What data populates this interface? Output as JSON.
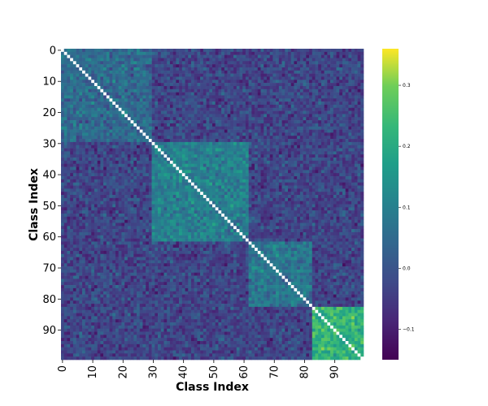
{
  "chart_data": {
    "type": "heatmap",
    "title": "",
    "xlabel": "Class Index",
    "ylabel": "Class Index",
    "n_classes": 100,
    "x_ticks": [
      "0",
      "10",
      "20",
      "30",
      "40",
      "50",
      "60",
      "70",
      "80",
      "90"
    ],
    "y_ticks": [
      "0",
      "10",
      "20",
      "30",
      "40",
      "50",
      "60",
      "70",
      "80",
      "90"
    ],
    "colorbar": {
      "colormap": "viridis",
      "range": [
        -0.15,
        0.36
      ],
      "ticks": [
        "0.3",
        "0.2",
        "0.1",
        "0.0",
        "−0.1"
      ],
      "tick_values": [
        0.3,
        0.2,
        0.1,
        0.0,
        -0.1
      ]
    },
    "diagonal": "white (masked)",
    "block_regions": [
      {
        "rows": [
          0,
          30
        ],
        "cols": [
          0,
          30
        ],
        "mean": 0.05
      },
      {
        "rows": [
          30,
          62
        ],
        "cols": [
          30,
          62
        ],
        "mean": 0.1
      },
      {
        "rows": [
          62,
          83
        ],
        "cols": [
          62,
          83
        ],
        "mean": 0.08
      },
      {
        "rows": [
          83,
          100
        ],
        "cols": [
          83,
          100
        ],
        "mean": 0.22
      }
    ],
    "base_mean": -0.03
  }
}
